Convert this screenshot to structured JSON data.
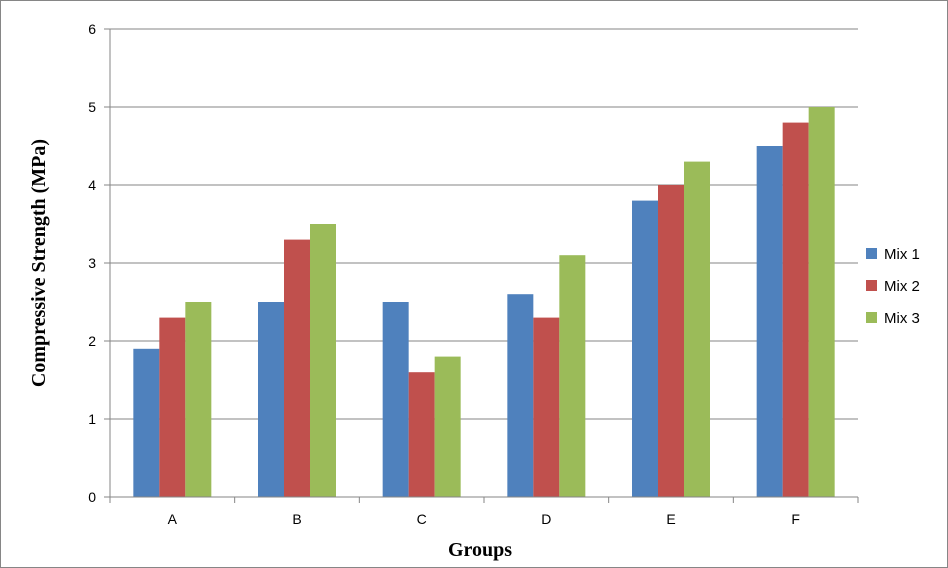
{
  "chart_data": {
    "type": "bar",
    "title": "",
    "xlabel": "Groups",
    "ylabel": "Compressive Strength (MPa)",
    "categories": [
      "A",
      "B",
      "C",
      "D",
      "E",
      "F"
    ],
    "ylim": [
      0,
      6
    ],
    "yticks": [
      "0",
      "1",
      "2",
      "3",
      "4",
      "5",
      "6"
    ],
    "grid": "horizontal",
    "legend_position": "right",
    "series": [
      {
        "name": "Mix 1",
        "color": "#4F81BD",
        "values": [
          1.9,
          2.5,
          2.5,
          2.6,
          3.8,
          4.5
        ]
      },
      {
        "name": "Mix 2",
        "color": "#C0504D",
        "values": [
          2.3,
          3.3,
          1.6,
          2.3,
          4.0,
          4.8
        ]
      },
      {
        "name": "Mix 3",
        "color": "#9BBB59",
        "values": [
          2.5,
          3.5,
          1.8,
          3.1,
          4.3,
          5.0
        ]
      }
    ]
  }
}
